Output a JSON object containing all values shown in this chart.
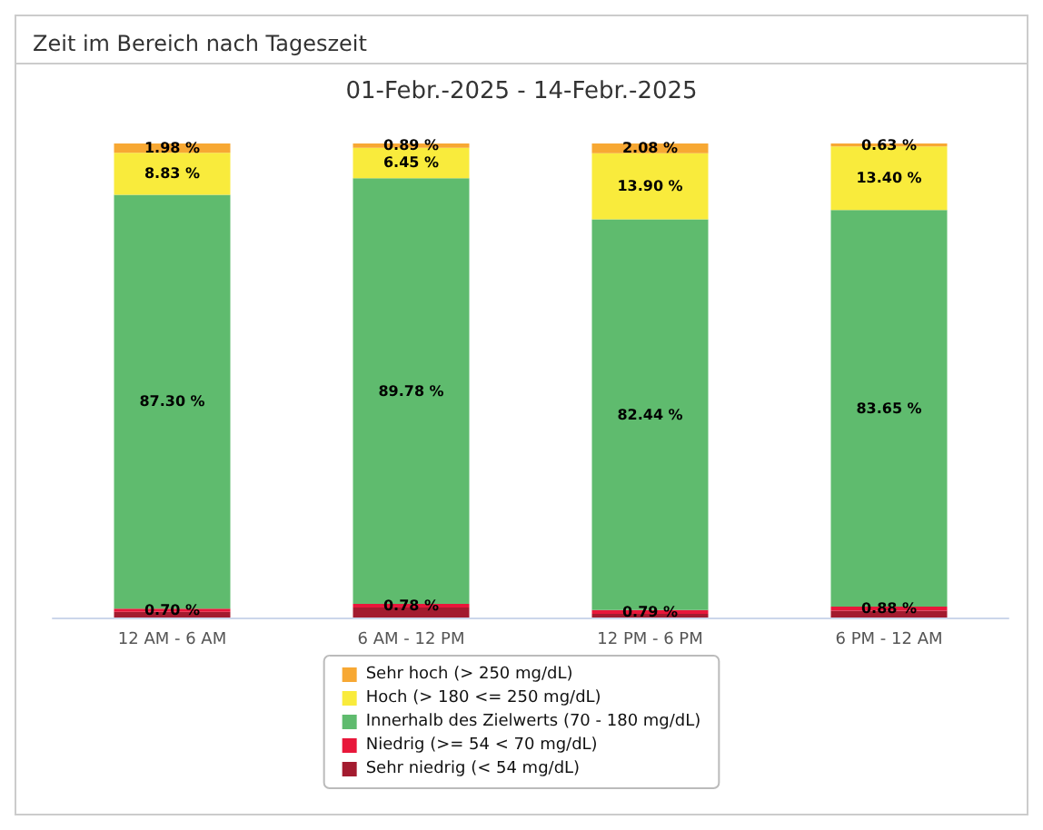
{
  "chart_data": {
    "type": "bar",
    "title": "Zeit im Bereich nach Tageszeit",
    "subtitle": "01-Febr.-2025 - 14-Febr.-2025",
    "categories": [
      "12 AM - 6 AM",
      "6 AM - 12 PM",
      "12 PM - 6 PM",
      "6 PM - 12 AM"
    ],
    "stacked": true,
    "legend": "bottom",
    "series": [
      {
        "name": "Sehr niedrig (< 54 mg/dL)",
        "color": "#a31b2f",
        "values": [
          1.19,
          2.1,
          0.79,
          1.44
        ],
        "value_labels": [
          null,
          null,
          null,
          null
        ]
      },
      {
        "name": "Niedrig (>= 54 < 70 mg/dL)",
        "color": "#e8173a",
        "values": [
          0.7,
          0.78,
          0.79,
          0.88
        ],
        "value_labels": [
          "0.70 %",
          "0.78 %",
          "0.79 %",
          "0.88 %"
        ]
      },
      {
        "name": "Innerhalb des Zielwerts (70 - 180 mg/dL)",
        "color": "#5fbb6e",
        "values": [
          87.3,
          89.78,
          82.44,
          83.65
        ],
        "value_labels": [
          "87.30 %",
          "89.78 %",
          "82.44 %",
          "83.65 %"
        ]
      },
      {
        "name": "Hoch (> 180 <= 250 mg/dL)",
        "color": "#f9eb3c",
        "values": [
          8.83,
          6.45,
          13.9,
          13.4
        ],
        "value_labels": [
          "8.83 %",
          "6.45 %",
          "13.90 %",
          "13.40 %"
        ]
      },
      {
        "name": "Sehr hoch (> 250 mg/dL)",
        "color": "#f7a833",
        "values": [
          1.98,
          0.89,
          2.08,
          0.63
        ],
        "value_labels": [
          "1.98 %",
          "0.89 %",
          "2.08 %",
          "0.63 %"
        ]
      }
    ]
  }
}
